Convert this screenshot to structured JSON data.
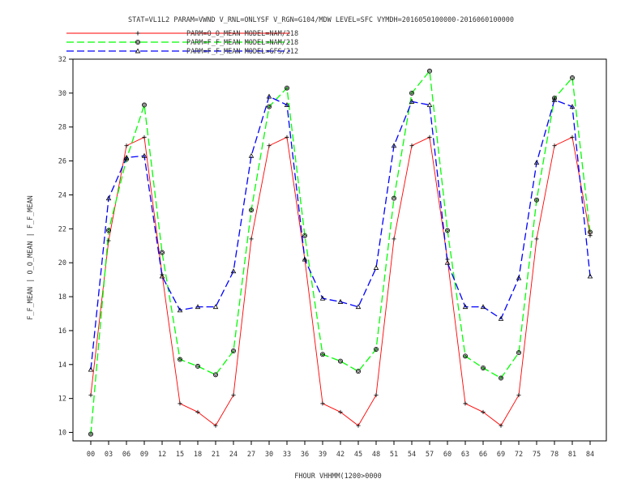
{
  "chart_data": {
    "type": "line",
    "title": "STAT=VL1L2 PARAM=VWND V_RNL=ONLYSF V_RGN=G104/MDW LEVEL=SFC VYMDH=2016050100000-2016060100000",
    "xlabel": "FHOUR VHHMM(1200>0000",
    "ylabel": "F_F_MEAN | O_O_MEAN | F_F_MEAN",
    "categories": [
      "00",
      "03",
      "06",
      "09",
      "12",
      "15",
      "18",
      "21",
      "24",
      "27",
      "30",
      "33",
      "36",
      "39",
      "42",
      "45",
      "48",
      "51",
      "54",
      "57",
      "60",
      "63",
      "66",
      "69",
      "72",
      "75",
      "78",
      "81",
      "84"
    ],
    "ylim": [
      9.5,
      32
    ],
    "yticks": [
      10,
      12,
      14,
      16,
      18,
      20,
      22,
      24,
      26,
      28,
      30,
      32
    ],
    "legend_position": "top-left",
    "grid": false,
    "series": [
      {
        "name": "PARM=O_O_MEAN MODEL=NAM/218",
        "color": "#ff0000",
        "dash": "solid",
        "marker": "plus",
        "values": [
          12.2,
          21.3,
          26.9,
          27.4,
          19.3,
          11.7,
          11.2,
          10.4,
          12.2,
          21.4,
          26.9,
          27.4,
          20.2,
          11.7,
          11.2,
          10.4,
          12.2,
          21.4,
          26.9,
          27.4,
          20.2,
          11.7,
          11.2,
          10.4,
          12.2,
          21.4,
          26.9,
          27.4,
          21.6
        ]
      },
      {
        "name": "PARM=F_F_MEAN MODEL=NAM/218",
        "color": "#00ff00",
        "dash": "long-dash",
        "marker": "diamond-circle",
        "values": [
          9.9,
          21.9,
          26.1,
          29.3,
          20.6,
          14.3,
          13.9,
          13.4,
          14.8,
          23.1,
          29.2,
          30.3,
          21.6,
          14.6,
          14.2,
          13.6,
          14.9,
          23.8,
          30.0,
          31.3,
          21.9,
          14.5,
          13.8,
          13.2,
          14.7,
          23.7,
          29.7,
          30.9,
          21.8
        ]
      },
      {
        "name": "PARM=F_F_MEAN MODEL=GFS/212",
        "color": "#0000ff",
        "dash": "long-dash",
        "marker": "triangle",
        "values": [
          13.7,
          23.8,
          26.2,
          26.3,
          19.2,
          17.2,
          17.4,
          17.4,
          19.5,
          26.3,
          29.8,
          29.3,
          20.2,
          17.9,
          17.7,
          17.4,
          19.7,
          26.9,
          29.5,
          29.3,
          20.0,
          17.4,
          17.4,
          16.7,
          19.1,
          25.9,
          29.6,
          29.2,
          19.2
        ]
      }
    ]
  }
}
